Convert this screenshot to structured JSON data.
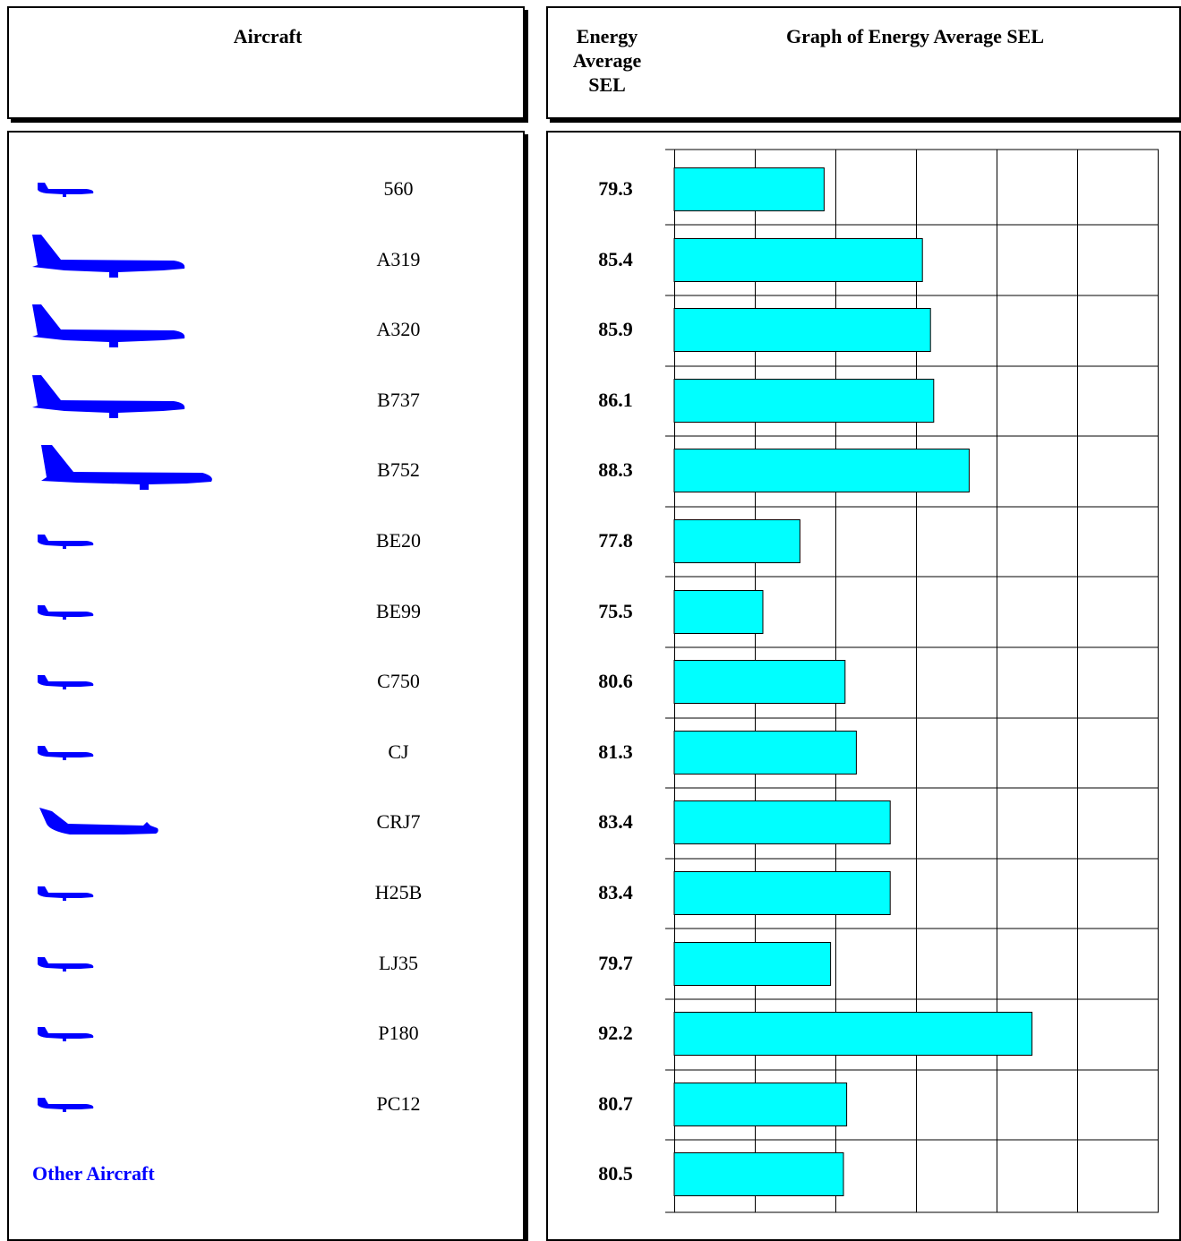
{
  "headers": {
    "aircraft": "Aircraft",
    "energy_average_sel": [
      "Energy",
      "Average",
      "SEL"
    ],
    "graph": "Graph of Energy Average SEL"
  },
  "colors": {
    "bar_fill": "#00ffff",
    "aircraft_icon": "#0000ff",
    "other_aircraft_text": "#0000ff"
  },
  "aircraft": [
    {
      "name": "560",
      "icon": "small-jet-icon"
    },
    {
      "name": "A319",
      "icon": "narrowbody-jet-icon"
    },
    {
      "name": "A320",
      "icon": "narrowbody-jet-icon"
    },
    {
      "name": "B737",
      "icon": "narrowbody-jet-icon"
    },
    {
      "name": "B752",
      "icon": "large-jet-icon"
    },
    {
      "name": "BE20",
      "icon": "small-jet-icon"
    },
    {
      "name": "BE99",
      "icon": "small-jet-icon"
    },
    {
      "name": "C750",
      "icon": "small-jet-icon"
    },
    {
      "name": "CJ",
      "icon": "small-jet-icon"
    },
    {
      "name": "CRJ7",
      "icon": "regional-jet-icon"
    },
    {
      "name": "H25B",
      "icon": "small-jet-icon"
    },
    {
      "name": "LJ35",
      "icon": "small-jet-icon"
    },
    {
      "name": "P180",
      "icon": "small-jet-icon"
    },
    {
      "name": "PC12",
      "icon": "small-jet-icon"
    }
  ],
  "other_aircraft_label": "Other Aircraft",
  "chart_data": {
    "type": "bar",
    "orientation": "horizontal",
    "title": "Graph of Energy Average SEL",
    "categories": [
      "560",
      "A319",
      "A320",
      "B737",
      "B752",
      "BE20",
      "BE99",
      "C750",
      "CJ",
      "CRJ7",
      "H25B",
      "LJ35",
      "P180",
      "PC12",
      "Other Aircraft"
    ],
    "values": [
      79.3,
      85.4,
      85.9,
      86.1,
      88.3,
      77.8,
      75.5,
      80.6,
      81.3,
      83.4,
      83.4,
      79.7,
      92.2,
      80.7,
      80.5
    ],
    "value_labels": [
      "79.3",
      "85.4",
      "85.9",
      "86.1",
      "88.3",
      "77.8",
      "75.5",
      "80.6",
      "81.3",
      "83.4",
      "83.4",
      "79.7",
      "92.2",
      "80.7",
      "80.5"
    ],
    "xlim": [
      70,
      100
    ],
    "x_gridlines": [
      70,
      75,
      80,
      85,
      90,
      95,
      100
    ],
    "grid": true,
    "legend": "none"
  }
}
